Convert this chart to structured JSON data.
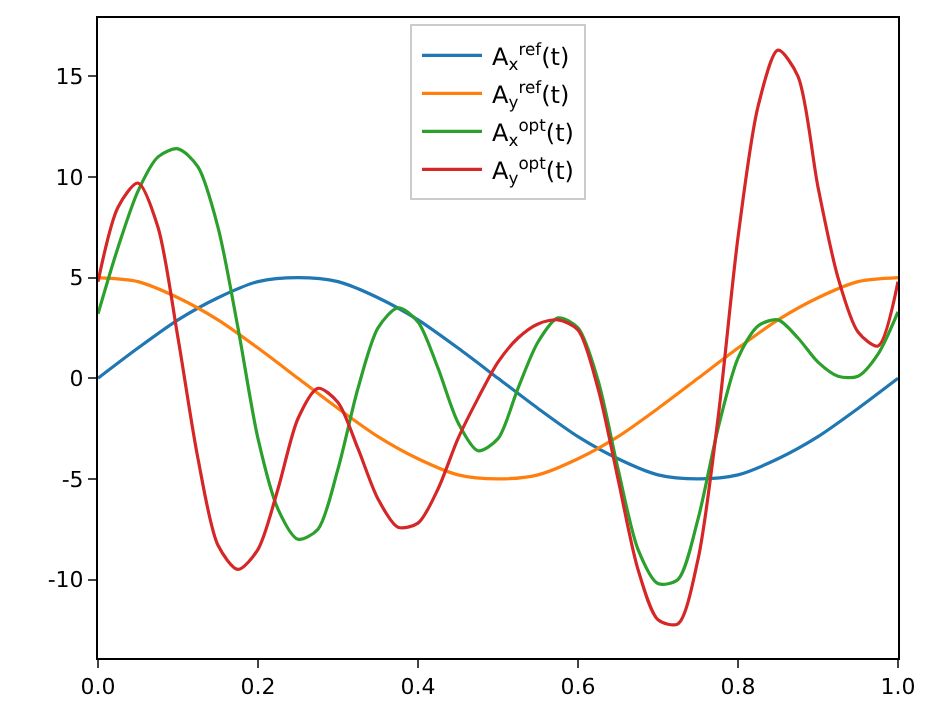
{
  "chart_data": {
    "type": "line",
    "xlim": [
      0,
      1
    ],
    "ylim": [
      -13.9,
      17.9
    ],
    "xticks": [
      {
        "value": 0,
        "label": "0.0"
      },
      {
        "value": 0.2,
        "label": "0.2"
      },
      {
        "value": 0.4,
        "label": "0.4"
      },
      {
        "value": 0.6,
        "label": "0.6"
      },
      {
        "value": 0.8,
        "label": "0.8"
      },
      {
        "value": 1,
        "label": "1.0"
      }
    ],
    "yticks": [
      -10,
      -5,
      0,
      5,
      10,
      15
    ],
    "grid": false,
    "legend": "top",
    "marker": "none",
    "line_style": "solid",
    "series": [
      {
        "name": "A$_{x}$$^{ref}$(t)",
        "color": "#1f77b4",
        "x": [
          0,
          0.05,
          0.1,
          0.15,
          0.2,
          0.25,
          0.3,
          0.35,
          0.4,
          0.45,
          0.5,
          0.55,
          0.6,
          0.65,
          0.7,
          0.75,
          0.8,
          0.85,
          0.9,
          0.95,
          1
        ],
        "values": [
          0,
          1.5,
          2.9,
          4,
          4.8,
          5,
          4.8,
          4,
          2.9,
          1.5,
          0,
          -1.5,
          -2.9,
          -4,
          -4.8,
          -5,
          -4.8,
          -4,
          -2.9,
          -1.5,
          0
        ]
      },
      {
        "name": "A$_{y}$$^{ref}$(t)",
        "color": "#ff7f0e",
        "x": [
          0,
          0.05,
          0.1,
          0.15,
          0.2,
          0.25,
          0.3,
          0.35,
          0.4,
          0.45,
          0.5,
          0.55,
          0.6,
          0.65,
          0.7,
          0.75,
          0.8,
          0.85,
          0.9,
          0.95,
          1
        ],
        "values": [
          5,
          4.8,
          4,
          2.9,
          1.5,
          0,
          -1.5,
          -2.9,
          -4,
          -4.8,
          -5,
          -4.8,
          -4,
          -2.9,
          -1.5,
          0,
          1.5,
          2.9,
          4,
          4.8,
          5
        ]
      },
      {
        "name": "A$_{x}$$^{opt}$(t)",
        "color": "#2ca02c",
        "x": [
          0,
          0.025,
          0.05,
          0.075,
          0.1,
          0.125,
          0.15,
          0.175,
          0.2,
          0.225,
          0.25,
          0.275,
          0.3,
          0.325,
          0.35,
          0.375,
          0.4,
          0.425,
          0.45,
          0.475,
          0.5,
          0.525,
          0.55,
          0.575,
          0.6,
          0.625,
          0.65,
          0.675,
          0.7,
          0.725,
          0.75,
          0.775,
          0.8,
          0.825,
          0.85,
          0.875,
          0.9,
          0.925,
          0.95,
          0.975,
          1
        ],
        "values": [
          3.2,
          6.5,
          9.3,
          11,
          11.4,
          10.5,
          7.5,
          2.5,
          -3,
          -6.5,
          -8,
          -7.5,
          -4.5,
          -0.5,
          2.5,
          3.5,
          2.8,
          0.5,
          -2.2,
          -3.6,
          -3,
          -0.5,
          1.8,
          3,
          2.5,
          -0.1,
          -4.5,
          -8.5,
          -10.2,
          -10,
          -7,
          -2.5,
          1,
          2.6,
          2.9,
          2,
          0.8,
          0.1,
          0.1,
          1.2,
          3.3
        ]
      },
      {
        "name": "A$_{y}$$^{opt}$(t)",
        "color": "#d62728",
        "x": [
          0,
          0.025,
          0.05,
          0.075,
          0.1,
          0.125,
          0.15,
          0.175,
          0.2,
          0.225,
          0.25,
          0.275,
          0.3,
          0.325,
          0.35,
          0.375,
          0.4,
          0.425,
          0.45,
          0.475,
          0.5,
          0.525,
          0.55,
          0.575,
          0.6,
          0.625,
          0.65,
          0.675,
          0.7,
          0.725,
          0.75,
          0.775,
          0.8,
          0.825,
          0.85,
          0.875,
          0.9,
          0.925,
          0.95,
          0.975,
          1
        ],
        "values": [
          4.8,
          8.5,
          9.7,
          7.5,
          2,
          -4,
          -8.3,
          -9.5,
          -8.5,
          -5.5,
          -2,
          -0.5,
          -1.2,
          -3.5,
          -6,
          -7.4,
          -7.2,
          -5.5,
          -3,
          -1,
          0.8,
          2,
          2.7,
          2.9,
          2.4,
          -0.5,
          -5,
          -9.5,
          -12,
          -12.2,
          -9,
          -2,
          7,
          13.5,
          16.3,
          15,
          9.5,
          5,
          2.3,
          1.6,
          4.8
        ]
      }
    ]
  }
}
